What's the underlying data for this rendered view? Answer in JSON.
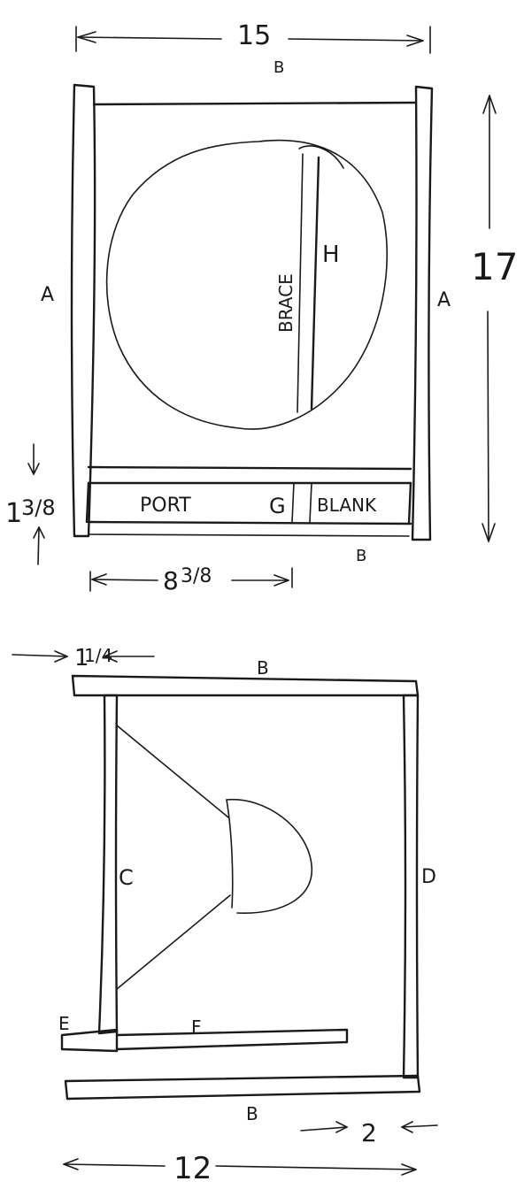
{
  "front_view": {
    "width_dim": "15",
    "height_dim": "17",
    "top_panel": "B",
    "bottom_panel": "B",
    "left_side": "A",
    "right_side": "A",
    "brace_label": "BRACE",
    "brace_panel": "H",
    "port_label": "PORT",
    "divider_label": "G",
    "blank_label": "BLANK",
    "port_height_whole": "1",
    "port_height_frac": "3/8",
    "port_length_whole": "8",
    "port_length_frac": "3/8"
  },
  "side_view": {
    "thickness_whole": "1",
    "thickness_frac": "1/4",
    "top_panel": "B",
    "bottom_panel": "B",
    "front_panel": "C",
    "back_panel": "D",
    "base_block": "E",
    "shelf": "F",
    "depth_dim": "12",
    "offset_dim": "2"
  }
}
